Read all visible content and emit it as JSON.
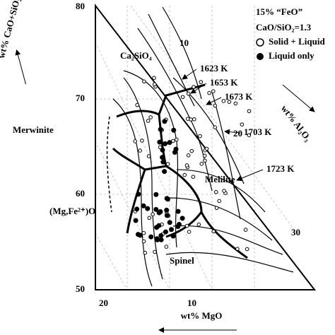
{
  "legend": {
    "title": "15% “FeO”",
    "ratio": "CaO/SiO₂=1.3",
    "open": "Solid + Liquid",
    "filled": "Liquid only"
  },
  "axes": {
    "left": {
      "label": "wt% CaO+SiO₂",
      "ticks": [
        "80",
        "70",
        "60",
        "50"
      ]
    },
    "right": {
      "label": "wt% Al₂O₃",
      "ticks": [
        "10",
        "20",
        "30"
      ]
    },
    "bottom": {
      "label": "wt% MgO",
      "ticks": [
        "20",
        "10"
      ]
    }
  },
  "regions": [
    "Ca₂SiO₄",
    "Merwinite",
    "(Mg,Fe²⁺)O",
    "Melilite",
    "Spinel"
  ],
  "isotherms": [
    "1623 K",
    "1653 K",
    "1673 K",
    "1703 K",
    "1723 K"
  ]
}
